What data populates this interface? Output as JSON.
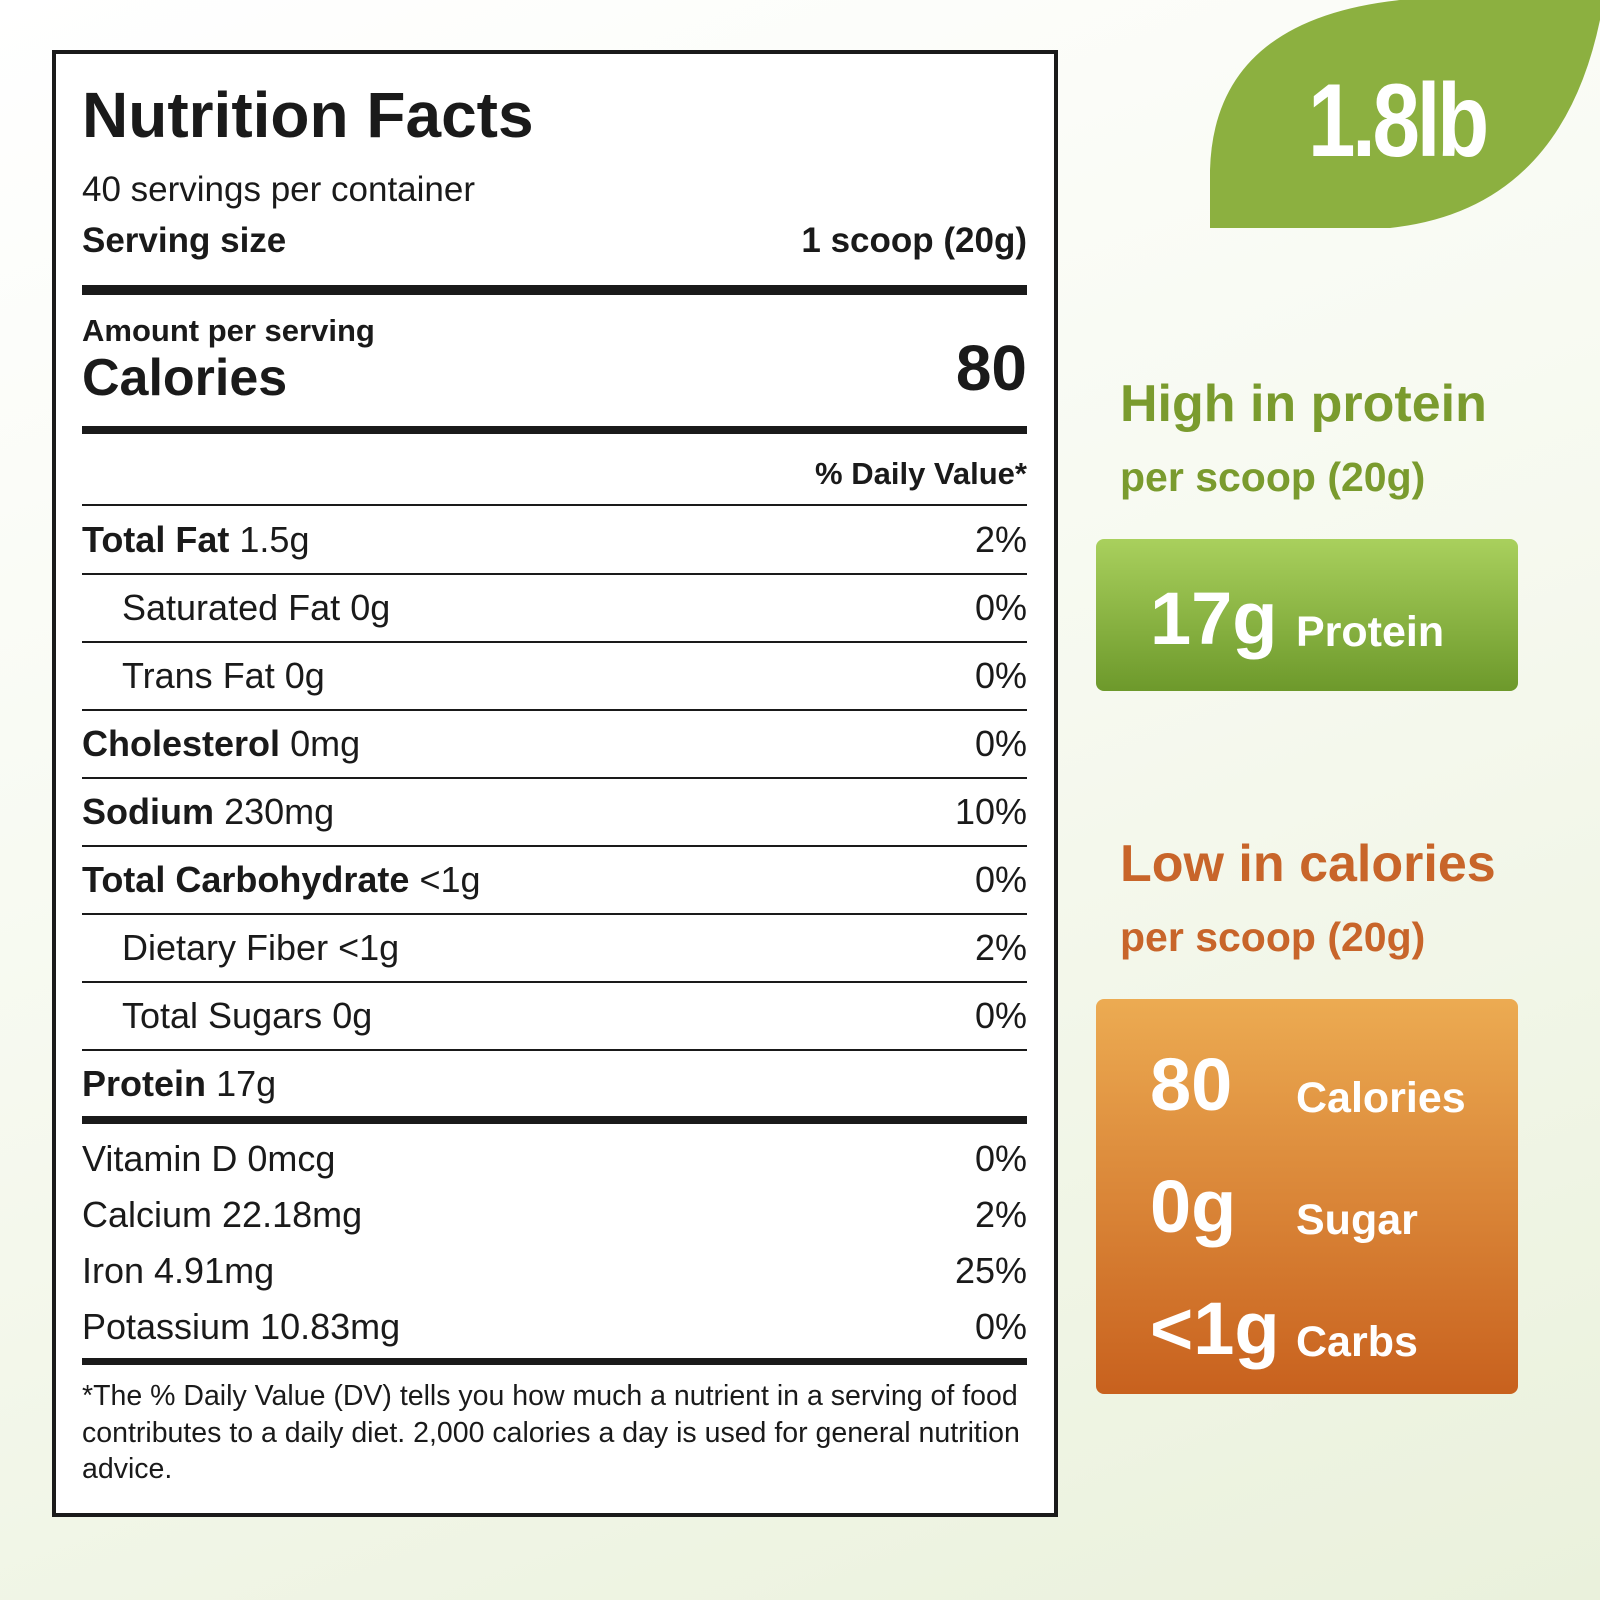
{
  "label": {
    "title": "Nutrition Facts",
    "servings": "40 servings per container",
    "serving_size": {
      "label": "Serving size",
      "value": "1 scoop (20g)"
    },
    "amount_per_serving": "Amount per serving",
    "calories": {
      "label": "Calories",
      "value": "80"
    },
    "dv_header": "% Daily Value*",
    "nutrients": [
      {
        "name": "Total Fat",
        "amount": "1.5g",
        "dv": "2%",
        "indent": false
      },
      {
        "name": "Saturated Fat",
        "amount": "0g",
        "dv": "0%",
        "indent": true
      },
      {
        "name": "Trans Fat",
        "amount": "0g",
        "dv": "0%",
        "indent": true
      },
      {
        "name": "Cholesterol",
        "amount": "0mg",
        "dv": "0%",
        "indent": false
      },
      {
        "name": "Sodium",
        "amount": "230mg",
        "dv": "10%",
        "indent": false
      },
      {
        "name": "Total Carbohydrate",
        "amount": "<1g",
        "dv": "0%",
        "indent": false
      },
      {
        "name": "Dietary Fiber",
        "amount": "<1g",
        "dv": "2%",
        "indent": true
      },
      {
        "name": "Total Sugars",
        "amount": "0g",
        "dv": "0%",
        "indent": true
      },
      {
        "name": "Protein",
        "amount": "17g",
        "indent": false
      }
    ],
    "vitamins": [
      {
        "name": "Vitamin D 0mcg",
        "dv": "0%"
      },
      {
        "name": "Calcium 22.18mg",
        "dv": "2%"
      },
      {
        "name": "Iron 4.91mg",
        "dv": "25%"
      },
      {
        "name": "Potassium 10.83mg",
        "dv": "0%"
      }
    ],
    "footnote": "*The % Daily Value (DV) tells you how much a nutrient in a serving of food contributes to a daily diet. 2,000 calories a day is used for general nutrition advice."
  },
  "badge": "1.8lb",
  "protein_panel": {
    "headline": "High in protein",
    "sub": "per scoop (20g)",
    "items": [
      {
        "value": "17g",
        "label": "Protein"
      }
    ]
  },
  "calories_panel": {
    "headline": "Low in calories",
    "sub": "per scoop (20g)",
    "items": [
      {
        "value": "80",
        "label": "Calories"
      },
      {
        "value": "0g",
        "label": "Sugar"
      },
      {
        "value": "<1g",
        "label": "Carbs"
      }
    ]
  }
}
